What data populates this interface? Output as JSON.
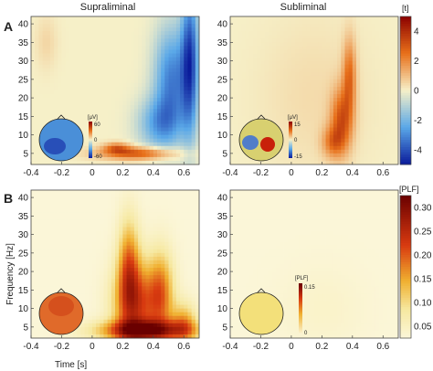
{
  "panel_labels": [
    "A",
    "B"
  ],
  "column_titles": [
    "Supraliminal",
    "Subliminal"
  ],
  "colors": {
    "background": "#f6f0c8",
    "t_neg": "#1f4fd8",
    "t_pos": "#d03a10",
    "plf_high": "#8b0000"
  },
  "axes": {
    "xlabel": "Time [s]",
    "ylabel": "Frequency [Hz]",
    "xticks": [
      "-0.4",
      "-0.2",
      "0",
      "0.2",
      "0.4",
      "0.6"
    ],
    "yticks": [
      "5",
      "10",
      "15",
      "20",
      "25",
      "30",
      "35",
      "40"
    ]
  },
  "colorbar_t": {
    "label": "[t]",
    "ticks": [
      "4",
      "2",
      "0",
      "-2",
      "-4"
    ]
  },
  "colorbar_plf": {
    "label": "[PLF]",
    "ticks": [
      "0.30",
      "0.25",
      "0.20",
      "0.15",
      "0.10",
      "0.05"
    ]
  },
  "topo_scales": {
    "A_supra": {
      "unit": "[µV]",
      "max": "60",
      "mid": "0",
      "min": "-60"
    },
    "A_sub": {
      "unit": "[µV]",
      "max": "15",
      "mid": "0",
      "min": "-15"
    },
    "B_sub": {
      "unit": "[PLF]",
      "max": "0.15",
      "min": "0"
    }
  },
  "chart_data": [
    {
      "type": "heatmap",
      "panel": "A",
      "condition": "Supraliminal",
      "quantity": "t",
      "xlim": [
        -0.4,
        0.7
      ],
      "ylim": [
        2,
        42
      ],
      "blobs": [
        {
          "t": 0.52,
          "f": 25,
          "st": 0.08,
          "sf": 10,
          "v": -3.2
        },
        {
          "t": 0.44,
          "f": 13,
          "st": 0.1,
          "sf": 5,
          "v": -2.4
        },
        {
          "t": 0.64,
          "f": 30,
          "st": 0.04,
          "sf": 14,
          "v": -4.0
        },
        {
          "t": 0.3,
          "f": 5,
          "st": 0.18,
          "sf": 1.2,
          "v": 3.2
        },
        {
          "t": 0.16,
          "f": 6.5,
          "st": 0.06,
          "sf": 1,
          "v": 2.2
        },
        {
          "t": -0.3,
          "f": 35,
          "st": 0.05,
          "sf": 5,
          "v": 0.5
        }
      ]
    },
    {
      "type": "heatmap",
      "panel": "A",
      "condition": "Subliminal",
      "quantity": "t",
      "xlim": [
        -0.4,
        0.7
      ],
      "ylim": [
        2,
        42
      ],
      "blobs": [
        {
          "t": 0.33,
          "f": 14,
          "st": 0.05,
          "sf": 6,
          "v": 2.9
        },
        {
          "t": 0.38,
          "f": 26,
          "st": 0.03,
          "sf": 7,
          "v": 2.4
        },
        {
          "t": 0.27,
          "f": 8,
          "st": 0.05,
          "sf": 3,
          "v": 2.0
        },
        {
          "t": 0.15,
          "f": 20,
          "st": 0.25,
          "sf": 15,
          "v": 0.4
        }
      ]
    },
    {
      "type": "heatmap",
      "panel": "B",
      "condition": "Supraliminal",
      "quantity": "PLF",
      "xlim": [
        -0.4,
        0.7
      ],
      "ylim": [
        2,
        42
      ],
      "blobs": [
        {
          "t": 0.28,
          "f": 11,
          "st": 0.1,
          "sf": 8,
          "v": 0.19
        },
        {
          "t": 0.24,
          "f": 22,
          "st": 0.05,
          "sf": 9,
          "v": 0.14
        },
        {
          "t": 0.45,
          "f": 14,
          "st": 0.06,
          "sf": 8,
          "v": 0.15
        },
        {
          "t": 0.35,
          "f": 4,
          "st": 0.22,
          "sf": 2,
          "v": 0.22
        },
        {
          "t": 0.6,
          "f": 6,
          "st": 0.06,
          "sf": 4,
          "v": 0.12
        }
      ]
    },
    {
      "type": "heatmap",
      "panel": "B",
      "condition": "Subliminal",
      "quantity": "PLF",
      "xlim": [
        -0.4,
        0.7
      ],
      "ylim": [
        2,
        42
      ],
      "blobs": [
        {
          "t": 0.2,
          "f": 10,
          "st": 0.2,
          "sf": 8,
          "v": 0.015
        }
      ]
    }
  ]
}
